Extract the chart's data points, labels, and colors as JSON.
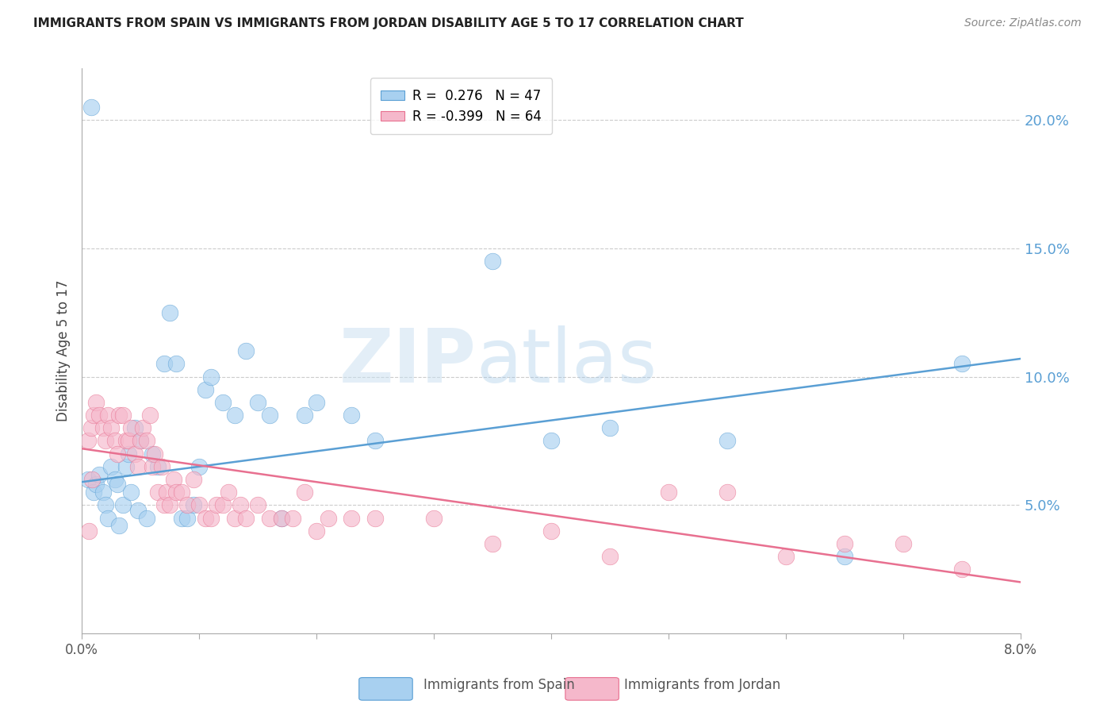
{
  "title": "IMMIGRANTS FROM SPAIN VS IMMIGRANTS FROM JORDAN DISABILITY AGE 5 TO 17 CORRELATION CHART",
  "source": "Source: ZipAtlas.com",
  "ylabel": "Disability Age 5 to 17",
  "ytick_values": [
    5.0,
    10.0,
    15.0,
    20.0
  ],
  "xmin": 0.0,
  "xmax": 8.0,
  "ymin": 0.0,
  "ymax": 22.0,
  "spain_R": 0.276,
  "spain_N": 47,
  "jordan_R": -0.399,
  "jordan_N": 64,
  "spain_color": "#a8d0f0",
  "jordan_color": "#f5b8cb",
  "spain_line_color": "#5a9fd4",
  "jordan_line_color": "#e87090",
  "watermark_zip": "ZIP",
  "watermark_atlas": "atlas",
  "spain_line_x0": 0.0,
  "spain_line_y0": 5.9,
  "spain_line_x1": 8.0,
  "spain_line_y1": 10.7,
  "jordan_line_x0": 0.0,
  "jordan_line_y0": 7.2,
  "jordan_line_x1": 8.0,
  "jordan_line_y1": 2.0,
  "spain_scatter_x": [
    0.05,
    0.08,
    0.1,
    0.12,
    0.15,
    0.18,
    0.2,
    0.22,
    0.25,
    0.28,
    0.3,
    0.32,
    0.35,
    0.38,
    0.4,
    0.42,
    0.45,
    0.48,
    0.5,
    0.55,
    0.6,
    0.65,
    0.7,
    0.75,
    0.8,
    0.85,
    0.9,
    0.95,
    1.0,
    1.05,
    1.1,
    1.2,
    1.3,
    1.4,
    1.5,
    1.6,
    1.7,
    1.9,
    2.0,
    2.3,
    2.5,
    3.5,
    4.0,
    4.5,
    5.5,
    6.5,
    7.5
  ],
  "spain_scatter_y": [
    6.0,
    20.5,
    5.5,
    5.8,
    6.2,
    5.5,
    5.0,
    4.5,
    6.5,
    6.0,
    5.8,
    4.2,
    5.0,
    6.5,
    7.0,
    5.5,
    8.0,
    4.8,
    7.5,
    4.5,
    7.0,
    6.5,
    10.5,
    12.5,
    10.5,
    4.5,
    4.5,
    5.0,
    6.5,
    9.5,
    10.0,
    9.0,
    8.5,
    11.0,
    9.0,
    8.5,
    4.5,
    8.5,
    9.0,
    8.5,
    7.5,
    14.5,
    7.5,
    8.0,
    7.5,
    3.0,
    10.5
  ],
  "jordan_scatter_x": [
    0.05,
    0.08,
    0.1,
    0.12,
    0.15,
    0.18,
    0.2,
    0.22,
    0.25,
    0.28,
    0.3,
    0.32,
    0.35,
    0.38,
    0.4,
    0.42,
    0.45,
    0.48,
    0.5,
    0.52,
    0.55,
    0.58,
    0.6,
    0.62,
    0.65,
    0.68,
    0.7,
    0.72,
    0.75,
    0.78,
    0.8,
    0.85,
    0.9,
    0.95,
    1.0,
    1.05,
    1.1,
    1.15,
    1.2,
    1.25,
    1.3,
    1.35,
    1.4,
    1.5,
    1.6,
    1.7,
    1.8,
    1.9,
    2.0,
    2.1,
    2.3,
    2.5,
    3.0,
    3.5,
    4.0,
    4.5,
    5.0,
    5.5,
    6.0,
    6.5,
    7.0,
    7.5,
    0.06,
    0.09
  ],
  "jordan_scatter_y": [
    7.5,
    8.0,
    8.5,
    9.0,
    8.5,
    8.0,
    7.5,
    8.5,
    8.0,
    7.5,
    7.0,
    8.5,
    8.5,
    7.5,
    7.5,
    8.0,
    7.0,
    6.5,
    7.5,
    8.0,
    7.5,
    8.5,
    6.5,
    7.0,
    5.5,
    6.5,
    5.0,
    5.5,
    5.0,
    6.0,
    5.5,
    5.5,
    5.0,
    6.0,
    5.0,
    4.5,
    4.5,
    5.0,
    5.0,
    5.5,
    4.5,
    5.0,
    4.5,
    5.0,
    4.5,
    4.5,
    4.5,
    5.5,
    4.0,
    4.5,
    4.5,
    4.5,
    4.5,
    3.5,
    4.0,
    3.0,
    5.5,
    5.5,
    3.0,
    3.5,
    3.5,
    2.5,
    4.0,
    6.0
  ]
}
